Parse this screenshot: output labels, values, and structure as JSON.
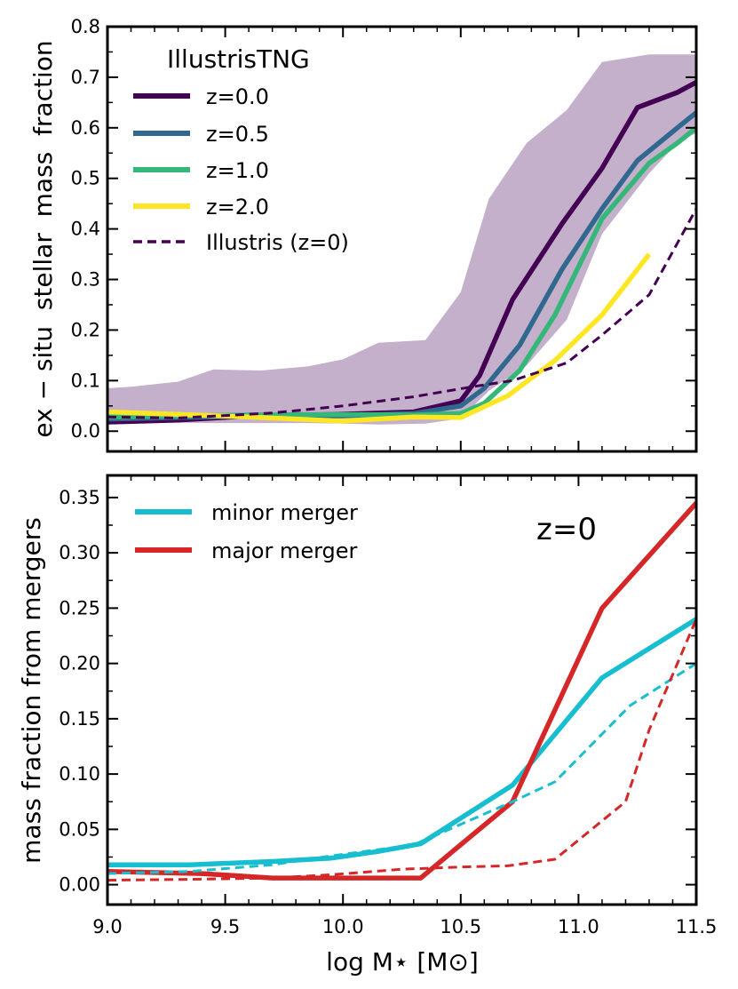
{
  "chart_data": [
    {
      "type": "line",
      "panel": "top",
      "ylabel": "ex − situ  stellar  mass  fraction",
      "xlabel": "",
      "xlim": [
        9.0,
        11.5
      ],
      "ylim": [
        -0.04,
        0.8
      ],
      "yticks": [
        0.0,
        0.1,
        0.2,
        0.3,
        0.4,
        0.5,
        0.6,
        0.7,
        0.8
      ],
      "ytick_labels": [
        "0.0",
        "0.1",
        "0.2",
        "0.3",
        "0.4",
        "0.5",
        "0.6",
        "0.7",
        "0.8"
      ],
      "legend_title": "IllustrisTNG",
      "legend_position": "upper-left",
      "band": {
        "name": "z=0.0 scatter",
        "color": "#c5b0cc",
        "x": [
          9.0,
          9.1,
          9.3,
          9.45,
          9.65,
          9.85,
          10.0,
          10.15,
          10.35,
          10.5,
          10.62,
          10.78,
          10.95,
          11.1,
          11.3,
          11.42,
          11.5
        ],
        "upper": [
          0.085,
          0.088,
          0.098,
          0.122,
          0.12,
          0.128,
          0.142,
          0.175,
          0.18,
          0.275,
          0.46,
          0.57,
          0.635,
          0.73,
          0.745,
          0.745,
          0.745
        ],
        "lower": [
          0.018,
          0.017,
          0.017,
          0.016,
          0.016,
          0.016,
          0.015,
          0.013,
          0.015,
          0.025,
          0.08,
          0.13,
          0.22,
          0.39,
          0.51,
          0.57,
          0.59
        ]
      },
      "series": [
        {
          "name": "z=0.0",
          "color": "#440154",
          "style": "solid",
          "x": [
            9.0,
            9.3,
            9.6,
            9.95,
            10.3,
            10.5,
            10.58,
            10.72,
            10.93,
            11.1,
            11.25,
            11.42,
            11.5
          ],
          "y": [
            0.018,
            0.022,
            0.03,
            0.033,
            0.038,
            0.06,
            0.11,
            0.26,
            0.41,
            0.52,
            0.64,
            0.67,
            0.69
          ]
        },
        {
          "name": "z=0.5",
          "color": "#31688e",
          "style": "solid",
          "x": [
            9.0,
            9.3,
            9.6,
            9.95,
            10.3,
            10.5,
            10.6,
            10.75,
            10.93,
            11.1,
            11.25,
            11.42,
            11.5
          ],
          "y": [
            0.024,
            0.027,
            0.03,
            0.03,
            0.035,
            0.05,
            0.085,
            0.17,
            0.32,
            0.44,
            0.535,
            0.6,
            0.63
          ]
        },
        {
          "name": "z=1.0",
          "color": "#35b779",
          "style": "solid",
          "x": [
            9.0,
            9.3,
            9.6,
            9.95,
            10.3,
            10.5,
            10.6,
            10.75,
            10.9,
            11.1,
            11.3,
            11.42,
            11.5
          ],
          "y": [
            0.028,
            0.03,
            0.032,
            0.033,
            0.032,
            0.035,
            0.055,
            0.12,
            0.23,
            0.42,
            0.53,
            0.57,
            0.6
          ]
        },
        {
          "name": "z=2.0",
          "color": "#fde725",
          "style": "solid",
          "x": [
            9.0,
            9.25,
            9.5,
            9.75,
            10.0,
            10.3,
            10.5,
            10.7,
            10.9,
            11.1,
            11.3
          ],
          "y": [
            0.038,
            0.034,
            0.03,
            0.025,
            0.02,
            0.028,
            0.027,
            0.07,
            0.14,
            0.23,
            0.35
          ]
        },
        {
          "name": "Illustris (z=0)",
          "color": "#440154",
          "style": "dashed",
          "x": [
            9.0,
            9.3,
            9.7,
            10.0,
            10.3,
            10.55,
            10.72,
            10.95,
            11.1,
            11.3,
            11.5
          ],
          "y": [
            0.028,
            0.026,
            0.036,
            0.05,
            0.068,
            0.088,
            0.1,
            0.135,
            0.19,
            0.27,
            0.44
          ]
        }
      ]
    },
    {
      "type": "line",
      "panel": "bottom",
      "xlabel": "log M⋆ [M⊙]",
      "ylabel": "mass fraction from mergers",
      "xlim": [
        9.0,
        11.5
      ],
      "ylim": [
        -0.018,
        0.37
      ],
      "xticks": [
        9.0,
        9.5,
        10.0,
        10.5,
        11.0,
        11.5
      ],
      "xtick_labels": [
        "9.0",
        "9.5",
        "10.0",
        "10.5",
        "11.0",
        "11.5"
      ],
      "yticks": [
        0.0,
        0.05,
        0.1,
        0.15,
        0.2,
        0.25,
        0.3,
        0.35
      ],
      "ytick_labels": [
        "0.00",
        "0.05",
        "0.10",
        "0.15",
        "0.20",
        "0.25",
        "0.30",
        "0.35"
      ],
      "annotation": "z=0",
      "legend_position": "upper-left",
      "series": [
        {
          "name": "minor merger",
          "color": "#17becf",
          "style": "solid",
          "x": [
            9.0,
            9.35,
            9.7,
            9.95,
            10.15,
            10.33,
            10.72,
            11.1,
            11.5
          ],
          "y": [
            0.018,
            0.018,
            0.021,
            0.024,
            0.03,
            0.037,
            0.09,
            0.187,
            0.24
          ]
        },
        {
          "name": "major merger",
          "color": "#d62728",
          "style": "solid",
          "x": [
            9.0,
            9.4,
            9.7,
            10.0,
            10.2,
            10.33,
            10.72,
            11.1,
            11.5
          ],
          "y": [
            0.012,
            0.01,
            0.006,
            0.006,
            0.006,
            0.006,
            0.075,
            0.25,
            0.345
          ]
        },
        {
          "name": "minor merger (Illustris)",
          "color": "#17becf",
          "style": "dashed",
          "legend": false,
          "x": [
            9.0,
            9.35,
            9.7,
            9.95,
            10.3,
            10.72,
            10.9,
            11.22,
            11.5
          ],
          "y": [
            0.01,
            0.012,
            0.018,
            0.026,
            0.036,
            0.075,
            0.093,
            0.162,
            0.2
          ]
        },
        {
          "name": "major merger (Illustris)",
          "color": "#d62728",
          "style": "dashed",
          "legend": false,
          "x": [
            9.0,
            9.4,
            9.7,
            9.95,
            10.25,
            10.5,
            10.7,
            10.9,
            11.2,
            11.3,
            11.5
          ],
          "y": [
            0.004,
            0.005,
            0.006,
            0.009,
            0.014,
            0.016,
            0.017,
            0.023,
            0.075,
            0.14,
            0.24
          ]
        }
      ]
    }
  ]
}
